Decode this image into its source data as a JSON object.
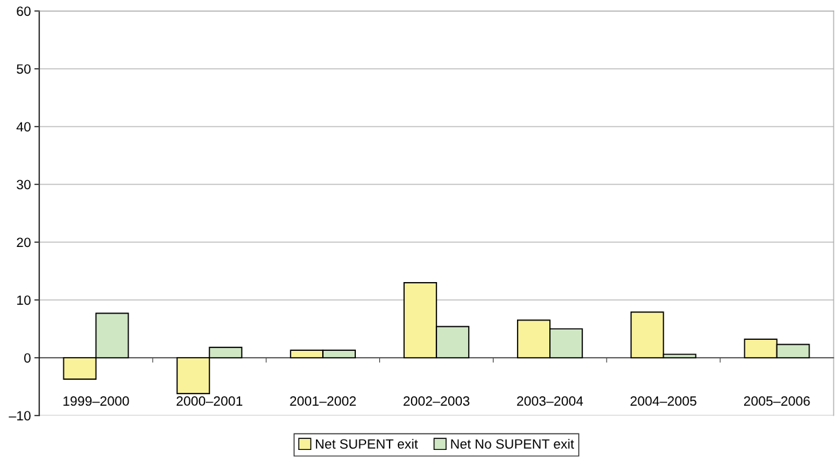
{
  "chart_data": {
    "type": "bar",
    "categories": [
      "1999–2000",
      "2000–2001",
      "2001–2002",
      "2002–2003",
      "2003–2004",
      "2004–2005",
      "2005–2006"
    ],
    "series": [
      {
        "name": "Net SUPENT exit",
        "color": "#faf29b",
        "values": [
          -3.7,
          -6.2,
          1.3,
          13.0,
          6.5,
          7.9,
          3.2
        ]
      },
      {
        "name": "Net No SUPENT exit",
        "color": "#d0e7c4",
        "values": [
          7.7,
          1.8,
          1.3,
          5.4,
          5.0,
          0.6,
          2.3
        ]
      }
    ],
    "ylim": [
      -10,
      60
    ],
    "yticks": [
      {
        "value": -10,
        "label": "–10"
      },
      0,
      10,
      20,
      30,
      40,
      50,
      60
    ],
    "grid": "y",
    "legend": "bottom"
  }
}
